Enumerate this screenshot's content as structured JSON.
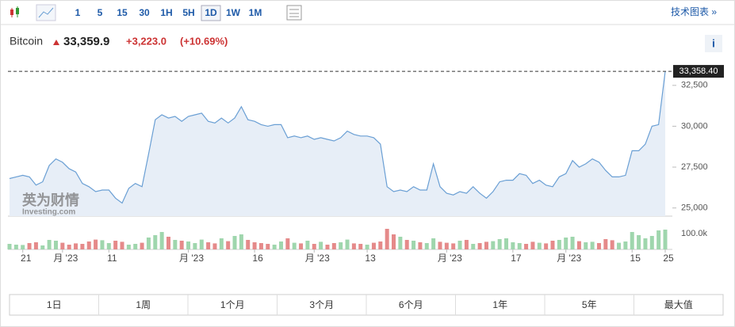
{
  "toolbar": {
    "intervals": [
      "1",
      "5",
      "15",
      "30",
      "1H",
      "5H",
      "1D",
      "1W",
      "1M"
    ],
    "selected": "1D",
    "tech_link": "技术图表 »"
  },
  "header": {
    "name": "Bitcoin",
    "price": "33,359.9",
    "change": "+3,223.0",
    "change_pct": "(+10.69%)",
    "info": "i"
  },
  "watermark": {
    "brand": "英为财情",
    "site": "Investing.com"
  },
  "ranges": [
    "1日",
    "1周",
    "1个月",
    "3个月",
    "6个月",
    "1年",
    "5年",
    "最大值"
  ],
  "chart_data": {
    "type": "area",
    "categories": [
      null,
      null,
      "21",
      null,
      null,
      null,
      null,
      null,
      "月 '23",
      null,
      null,
      null,
      null,
      null,
      null,
      "11",
      null,
      null,
      null,
      null,
      null,
      null,
      null,
      null,
      null,
      null,
      null,
      "月 '23",
      null,
      null,
      null,
      null,
      null,
      null,
      null,
      null,
      null,
      "16",
      null,
      null,
      null,
      null,
      null,
      null,
      null,
      null,
      "月 '23",
      null,
      null,
      null,
      null,
      null,
      null,
      null,
      "13",
      null,
      null,
      null,
      null,
      null,
      null,
      null,
      null,
      null,
      null,
      null,
      "月 '23",
      null,
      null,
      null,
      null,
      null,
      null,
      null,
      null,
      null,
      "17",
      null,
      null,
      null,
      null,
      null,
      null,
      null,
      "月 '23",
      null,
      null,
      null,
      null,
      null,
      null,
      null,
      null,
      null,
      "15",
      null,
      null,
      null,
      null,
      "25"
    ],
    "series": [
      {
        "name": "Bitcoin",
        "color": "#6a9fd4",
        "fill": "#e7eef7",
        "values": [
          26800,
          26900,
          27000,
          26900,
          26400,
          26600,
          27600,
          28000,
          27800,
          27400,
          27200,
          26500,
          26300,
          26000,
          26100,
          26100,
          25600,
          25300,
          26200,
          26500,
          26300,
          28300,
          30400,
          30700,
          30500,
          30600,
          30300,
          30600,
          30700,
          30800,
          30300,
          30200,
          30500,
          30200,
          30500,
          31200,
          30400,
          30300,
          30100,
          30000,
          30100,
          30100,
          29300,
          29400,
          29300,
          29400,
          29200,
          29300,
          29200,
          29100,
          29300,
          29700,
          29500,
          29400,
          29400,
          29300,
          28900,
          26300,
          26000,
          26100,
          26000,
          26300,
          26100,
          26100,
          27700,
          26300,
          25900,
          25800,
          26000,
          25900,
          26300,
          25900,
          25600,
          26000,
          26600,
          26700,
          26700,
          27100,
          27000,
          26500,
          26700,
          26400,
          26300,
          26900,
          27100,
          27900,
          27500,
          27700,
          28000,
          27800,
          27300,
          26900,
          26900,
          27000,
          28500,
          28500,
          28900,
          30000,
          30100,
          33358.4
        ]
      }
    ],
    "ylim": [
      24500,
      33750
    ],
    "yticks": [
      {
        "value": 25000,
        "label": "25,000"
      },
      {
        "value": 27500,
        "label": "27,500"
      },
      {
        "value": 30000,
        "label": "30,000"
      },
      {
        "value": 32500,
        "label": "32,500"
      }
    ],
    "last_price": {
      "value": 33358.4,
      "label": "33,358.40"
    },
    "volume": {
      "up_color": "#9fd6ad",
      "down_color": "#e58a8a",
      "ylim": [
        0,
        150000
      ],
      "yticks": [
        {
          "value": 100000,
          "label": "100.0k"
        }
      ],
      "values": [
        35000,
        30000,
        28000,
        40000,
        45000,
        25000,
        60000,
        55000,
        42000,
        30000,
        38000,
        35000,
        50000,
        62000,
        58000,
        40000,
        55000,
        48000,
        30000,
        35000,
        42000,
        75000,
        90000,
        110000,
        80000,
        60000,
        55000,
        50000,
        40000,
        62000,
        45000,
        38000,
        70000,
        52000,
        85000,
        95000,
        60000,
        45000,
        40000,
        35000,
        30000,
        50000,
        70000,
        42000,
        38000,
        55000,
        35000,
        48000,
        30000,
        40000,
        45000,
        62000,
        38000,
        35000,
        30000,
        42000,
        50000,
        130000,
        95000,
        80000,
        60000,
        55000,
        45000,
        40000,
        70000,
        48000,
        42000,
        38000,
        55000,
        60000,
        35000,
        40000,
        48000,
        52000,
        65000,
        70000,
        45000,
        40000,
        35000,
        48000,
        42000,
        38000,
        55000,
        60000,
        75000,
        80000,
        52000,
        45000,
        48000,
        40000,
        65000,
        58000,
        42000,
        50000,
        110000,
        90000,
        70000,
        85000,
        120000,
        125000
      ]
    }
  }
}
